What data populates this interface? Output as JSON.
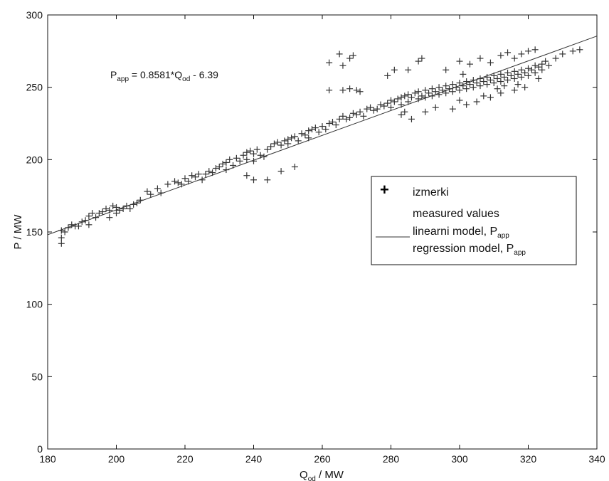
{
  "chart_data": {
    "type": "scatter",
    "xlabel": {
      "main": "Q",
      "sub": "od",
      "unit": " / MW"
    },
    "ylabel": "P  /  MW",
    "xlim": [
      180,
      340
    ],
    "ylim": [
      0,
      300
    ],
    "xticks": [
      "180",
      "200",
      "220",
      "240",
      "260",
      "280",
      "300",
      "320",
      "340"
    ],
    "yticks": [
      "0",
      "50",
      "100",
      "150",
      "200",
      "250",
      "300"
    ],
    "grid": false,
    "legend_placement": "right",
    "annotation": {
      "lhs_main": "P",
      "lhs_sub": "app",
      "rhs": " = 0.8581*Q",
      "rhs_sub": "od",
      "tail": " - 6.39"
    },
    "legend": [
      {
        "marker": "+",
        "text": "izmerki"
      },
      {
        "marker": "",
        "text": "measured  values"
      },
      {
        "marker": "line",
        "text": "linearni model, P",
        "sub": "app"
      },
      {
        "marker": "",
        "text": "regression model, P",
        "sub": "app"
      }
    ],
    "series": [
      {
        "name": "izmerki",
        "style": "plus",
        "color": "#333333",
        "points": [
          [
            184,
            142
          ],
          [
            184,
            146
          ],
          [
            184,
            151
          ],
          [
            185,
            150
          ],
          [
            186,
            153
          ],
          [
            187,
            155
          ],
          [
            188,
            154
          ],
          [
            189,
            154
          ],
          [
            190,
            157
          ],
          [
            191,
            158
          ],
          [
            192,
            155
          ],
          [
            192,
            161
          ],
          [
            193,
            163
          ],
          [
            194,
            160
          ],
          [
            195,
            163
          ],
          [
            196,
            164
          ],
          [
            197,
            166
          ],
          [
            198,
            160
          ],
          [
            198,
            165
          ],
          [
            199,
            168
          ],
          [
            200,
            163
          ],
          [
            200,
            167
          ],
          [
            201,
            165
          ],
          [
            202,
            166
          ],
          [
            203,
            168
          ],
          [
            204,
            166
          ],
          [
            205,
            169
          ],
          [
            206,
            170
          ],
          [
            207,
            172
          ],
          [
            209,
            178
          ],
          [
            210,
            176
          ],
          [
            212,
            180
          ],
          [
            213,
            177
          ],
          [
            215,
            183
          ],
          [
            217,
            185
          ],
          [
            218,
            184
          ],
          [
            219,
            183
          ],
          [
            220,
            187
          ],
          [
            221,
            185
          ],
          [
            222,
            189
          ],
          [
            223,
            188
          ],
          [
            224,
            190
          ],
          [
            225,
            186
          ],
          [
            226,
            190
          ],
          [
            227,
            192
          ],
          [
            228,
            191
          ],
          [
            229,
            194
          ],
          [
            230,
            195
          ],
          [
            231,
            197
          ],
          [
            232,
            193
          ],
          [
            232,
            198
          ],
          [
            233,
            200
          ],
          [
            234,
            196
          ],
          [
            235,
            201
          ],
          [
            236,
            199
          ],
          [
            237,
            203
          ],
          [
            238,
            200
          ],
          [
            238,
            205
          ],
          [
            239,
            206
          ],
          [
            240,
            199
          ],
          [
            240,
            204
          ],
          [
            241,
            207
          ],
          [
            242,
            203
          ],
          [
            243,
            202
          ],
          [
            244,
            207
          ],
          [
            245,
            209
          ],
          [
            246,
            211
          ],
          [
            247,
            212
          ],
          [
            248,
            210
          ],
          [
            249,
            213
          ],
          [
            250,
            211
          ],
          [
            250,
            214
          ],
          [
            251,
            215
          ],
          [
            252,
            216
          ],
          [
            253,
            213
          ],
          [
            254,
            218
          ],
          [
            255,
            217
          ],
          [
            256,
            215
          ],
          [
            256,
            220
          ],
          [
            257,
            221
          ],
          [
            258,
            222
          ],
          [
            259,
            219
          ],
          [
            260,
            223
          ],
          [
            261,
            221
          ],
          [
            262,
            225
          ],
          [
            263,
            226
          ],
          [
            264,
            224
          ],
          [
            265,
            228
          ],
          [
            266,
            230
          ],
          [
            267,
            228
          ],
          [
            268,
            229
          ],
          [
            269,
            232
          ],
          [
            270,
            231
          ],
          [
            271,
            233
          ],
          [
            272,
            230
          ],
          [
            273,
            235
          ],
          [
            274,
            236
          ],
          [
            275,
            234
          ],
          [
            276,
            235
          ],
          [
            277,
            238
          ],
          [
            278,
            237
          ],
          [
            279,
            239
          ],
          [
            280,
            236
          ],
          [
            280,
            241
          ],
          [
            281,
            240
          ],
          [
            282,
            242
          ],
          [
            283,
            238
          ],
          [
            283,
            243
          ],
          [
            284,
            244
          ],
          [
            285,
            240
          ],
          [
            285,
            245
          ],
          [
            286,
            243
          ],
          [
            287,
            246
          ],
          [
            288,
            242
          ],
          [
            288,
            247
          ],
          [
            289,
            244
          ],
          [
            290,
            248
          ],
          [
            290,
            243
          ],
          [
            291,
            246
          ],
          [
            292,
            249
          ],
          [
            292,
            244
          ],
          [
            293,
            247
          ],
          [
            294,
            250
          ],
          [
            294,
            245
          ],
          [
            295,
            248
          ],
          [
            296,
            251
          ],
          [
            296,
            246
          ],
          [
            297,
            249
          ],
          [
            298,
            252
          ],
          [
            298,
            247
          ],
          [
            299,
            250
          ],
          [
            300,
            253
          ],
          [
            300,
            248
          ],
          [
            301,
            251
          ],
          [
            302,
            254
          ],
          [
            302,
            249
          ],
          [
            303,
            252
          ],
          [
            304,
            255
          ],
          [
            304,
            250
          ],
          [
            305,
            253
          ],
          [
            306,
            256
          ],
          [
            306,
            251
          ],
          [
            307,
            254
          ],
          [
            308,
            257
          ],
          [
            308,
            252
          ],
          [
            309,
            255
          ],
          [
            310,
            258
          ],
          [
            310,
            253
          ],
          [
            311,
            256
          ],
          [
            312,
            259
          ],
          [
            312,
            254
          ],
          [
            313,
            257
          ],
          [
            314,
            260
          ],
          [
            314,
            255
          ],
          [
            315,
            258
          ],
          [
            316,
            261
          ],
          [
            316,
            256
          ],
          [
            317,
            259
          ],
          [
            318,
            262
          ],
          [
            318,
            257
          ],
          [
            319,
            260
          ],
          [
            320,
            263
          ],
          [
            320,
            258
          ],
          [
            321,
            262
          ],
          [
            322,
            265
          ],
          [
            322,
            260
          ],
          [
            323,
            264
          ],
          [
            324,
            266
          ],
          [
            324,
            262
          ],
          [
            325,
            268
          ],
          [
            326,
            265
          ],
          [
            328,
            270
          ],
          [
            330,
            273
          ],
          [
            333,
            275
          ],
          [
            335,
            276
          ],
          [
            262,
            248
          ],
          [
            266,
            248
          ],
          [
            268,
            249
          ],
          [
            270,
            248
          ],
          [
            271,
            247
          ],
          [
            265,
            273
          ],
          [
            268,
            270
          ],
          [
            266,
            265
          ],
          [
            262,
            267
          ],
          [
            269,
            272
          ],
          [
            240,
            186
          ],
          [
            244,
            186
          ],
          [
            238,
            189
          ],
          [
            248,
            192
          ],
          [
            252,
            195
          ],
          [
            281,
            262
          ],
          [
            279,
            258
          ],
          [
            285,
            262
          ],
          [
            288,
            268
          ],
          [
            289,
            270
          ],
          [
            296,
            262
          ],
          [
            300,
            268
          ],
          [
            301,
            259
          ],
          [
            303,
            266
          ],
          [
            306,
            270
          ],
          [
            309,
            267
          ],
          [
            312,
            272
          ],
          [
            314,
            274
          ],
          [
            316,
            270
          ],
          [
            318,
            273
          ],
          [
            320,
            275
          ],
          [
            322,
            276
          ],
          [
            298,
            235
          ],
          [
            302,
            238
          ],
          [
            305,
            240
          ],
          [
            309,
            243
          ],
          [
            312,
            246
          ],
          [
            316,
            248
          ],
          [
            319,
            250
          ],
          [
            323,
            256
          ],
          [
            290,
            233
          ],
          [
            293,
            236
          ],
          [
            286,
            228
          ],
          [
            284,
            233
          ],
          [
            283,
            231
          ],
          [
            300,
            241
          ],
          [
            307,
            244
          ],
          [
            311,
            249
          ],
          [
            313,
            251
          ],
          [
            317,
            252
          ]
        ]
      },
      {
        "name": "linearni model, P",
        "style": "line",
        "color": "#333333",
        "points": [
          [
            180,
            148.1
          ],
          [
            340,
            285.4
          ]
        ]
      }
    ]
  }
}
